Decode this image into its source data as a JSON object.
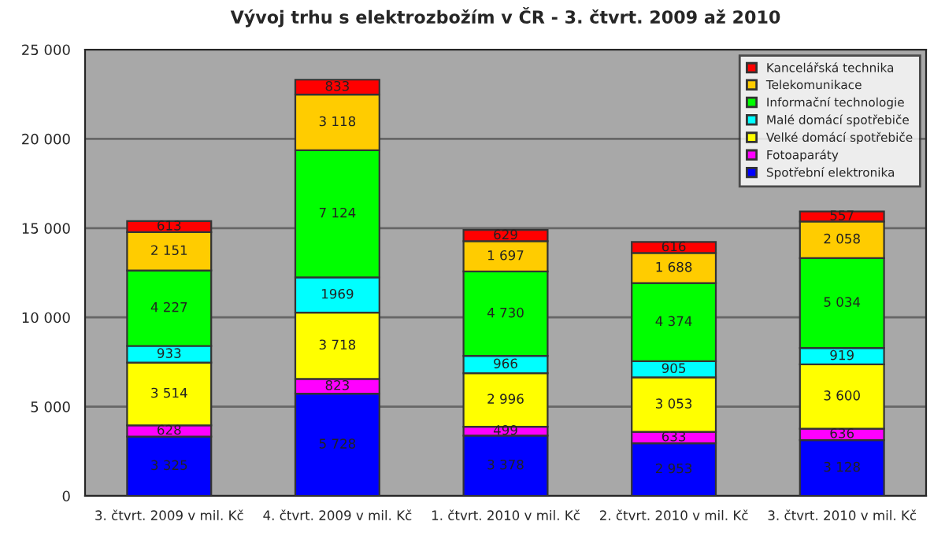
{
  "chart_data": {
    "type": "bar",
    "title": "Vývoj trhu s elektrozbožím v ČR - 3. čtvrt. 2009 až 2010",
    "stacked": true,
    "categories": [
      "3. čtvrt. 2009 v mil. Kč",
      "4. čtvrt. 2009 v mil. Kč",
      "1. čtvrt. 2010 v mil. Kč",
      "2. čtvrt. 2010 v mil. Kč",
      "3. čtvrt. 2010 v mil. Kč"
    ],
    "series": [
      {
        "name": "Spotřební elektronika",
        "color": "#0000ff",
        "values": [
          3325,
          5728,
          3378,
          2953,
          3128
        ],
        "value_labels": [
          "3 325",
          "5 728",
          "3 378",
          "2 953",
          "3 128"
        ]
      },
      {
        "name": "Fotoaparáty",
        "color": "#ff00ff",
        "values": [
          628,
          823,
          499,
          633,
          636
        ],
        "value_labels": [
          "628",
          "823",
          "499",
          "633",
          "636"
        ]
      },
      {
        "name": "Velké domácí spotřebiče",
        "color": "#ffff00",
        "values": [
          3514,
          3718,
          2996,
          3053,
          3600
        ],
        "value_labels": [
          "3 514",
          "3 718",
          "2 996",
          "3 053",
          "3 600"
        ]
      },
      {
        "name": "Malé domácí spotřebiče",
        "color": "#00ffff",
        "values": [
          933,
          1969,
          966,
          905,
          919
        ],
        "value_labels": [
          "933",
          "1969",
          "966",
          "905",
          "919"
        ]
      },
      {
        "name": "Informační technologie",
        "color": "#00ff00",
        "values": [
          4227,
          7124,
          4730,
          4374,
          5034
        ],
        "value_labels": [
          "4 227",
          "7 124",
          "4 730",
          "4 374",
          "5 034"
        ]
      },
      {
        "name": "Telekomunikace",
        "color": "#ffcc00",
        "values": [
          2151,
          3118,
          1697,
          1688,
          2058
        ],
        "value_labels": [
          "2 151",
          "3 118",
          "1 697",
          "1 688",
          "2 058"
        ]
      },
      {
        "name": "Kancelářská technika",
        "color": "#ff0000",
        "values": [
          613,
          833,
          629,
          616,
          557
        ],
        "value_labels": [
          "613",
          "833",
          "629",
          "616",
          "557"
        ]
      }
    ],
    "ylim": [
      0,
      25000
    ],
    "yticks": [
      {
        "value": 0,
        "label": "0"
      },
      {
        "value": 5000,
        "label": "5 000"
      },
      {
        "value": 10000,
        "label": "10 000"
      },
      {
        "value": 15000,
        "label": "15 000"
      },
      {
        "value": 20000,
        "label": "20 000"
      },
      {
        "value": 25000,
        "label": "25 000"
      }
    ],
    "grid": "y",
    "legend": "top right"
  }
}
